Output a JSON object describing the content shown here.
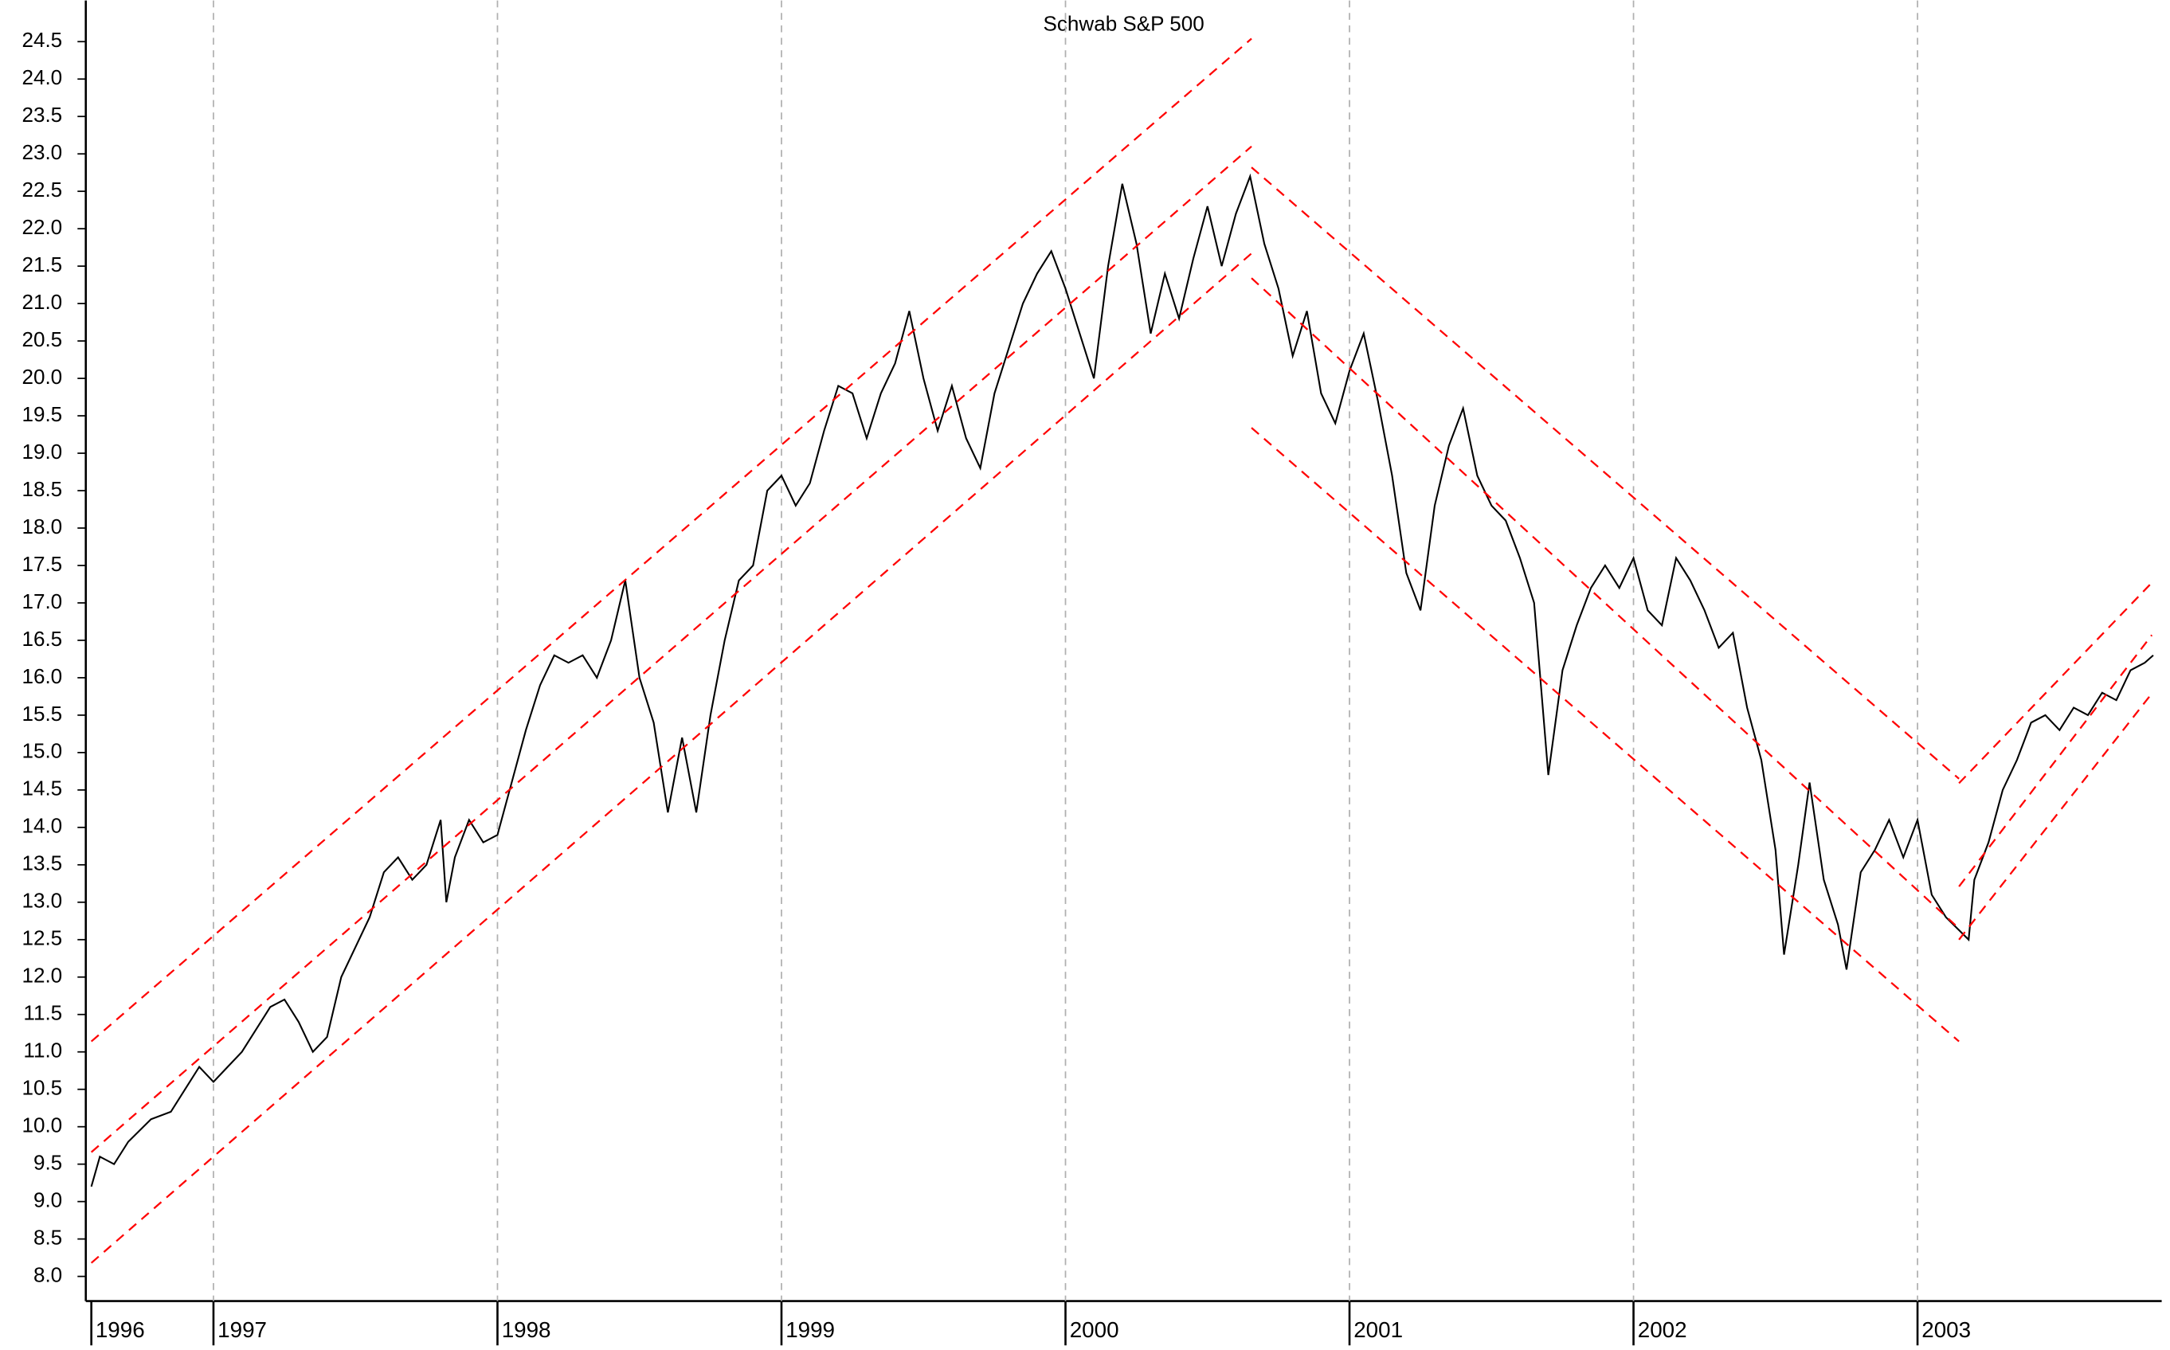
{
  "chart_data": {
    "type": "line",
    "title": "Schwab S&P 500",
    "grid": true,
    "xlim": [
      1996.57,
      2003.85
    ],
    "xticks": [
      {
        "value": 1996.57,
        "label": "1996"
      },
      {
        "value": 1997,
        "label": "1997"
      },
      {
        "value": 1998,
        "label": "1998"
      },
      {
        "value": 1999,
        "label": "1999"
      },
      {
        "value": 2000,
        "label": "2000"
      },
      {
        "value": 2001,
        "label": "2001"
      },
      {
        "value": 2002,
        "label": "2002"
      },
      {
        "value": 2003,
        "label": "2003"
      }
    ],
    "ylim": [
      7.67,
      25.05
    ],
    "yticks": [
      {
        "value": 8,
        "label": "8.0"
      },
      8.5,
      {
        "value": 9,
        "label": "9.0"
      },
      9.5,
      {
        "value": 10,
        "label": "10.0"
      },
      10.5,
      {
        "value": 11,
        "label": "11.0"
      },
      11.5,
      {
        "value": 12,
        "label": "12.0"
      },
      12.5,
      {
        "value": 13,
        "label": "13.0"
      },
      13.5,
      {
        "value": 14,
        "label": "14.0"
      },
      14.5,
      {
        "value": 15,
        "label": "15.0"
      },
      15.5,
      {
        "value": 16,
        "label": "16.0"
      },
      16.5,
      {
        "value": 17,
        "label": "17.0"
      },
      17.5,
      {
        "value": 18,
        "label": "18.0"
      },
      18.5,
      {
        "value": 19,
        "label": "19.0"
      },
      19.5,
      {
        "value": 20,
        "label": "20.0"
      },
      20.5,
      {
        "value": 21,
        "label": "21.0"
      },
      21.5,
      {
        "value": 22,
        "label": "22.0"
      },
      22.5,
      {
        "value": 23,
        "label": "23.0"
      },
      23.5,
      {
        "value": 24,
        "label": "24.0"
      },
      24.5
    ],
    "series": [
      {
        "color": "#000000",
        "dash": false,
        "x": [
          1996.57,
          1996.6,
          1996.65,
          1996.7,
          1996.78,
          1996.85,
          1996.9,
          1996.95,
          1997.0,
          1997.05,
          1997.1,
          1997.15,
          1997.2,
          1997.25,
          1997.3,
          1997.35,
          1997.4,
          1997.45,
          1997.5,
          1997.55,
          1997.6,
          1997.65,
          1997.7,
          1997.75,
          1997.8,
          1997.82,
          1997.85,
          1997.9,
          1997.95,
          1998.0,
          1998.05,
          1998.1,
          1998.15,
          1998.2,
          1998.25,
          1998.3,
          1998.35,
          1998.4,
          1998.45,
          1998.5,
          1998.55,
          1998.6,
          1998.65,
          1998.7,
          1998.75,
          1998.8,
          1998.85,
          1998.9,
          1998.95,
          1999.0,
          1999.05,
          1999.1,
          1999.15,
          1999.2,
          1999.25,
          1999.3,
          1999.35,
          1999.4,
          1999.45,
          1999.5,
          1999.55,
          1999.6,
          1999.65,
          1999.7,
          1999.75,
          1999.8,
          1999.85,
          1999.9,
          1999.95,
          2000.0,
          2000.05,
          2000.1,
          2000.15,
          2000.2,
          2000.25,
          2000.3,
          2000.35,
          2000.4,
          2000.45,
          2000.5,
          2000.55,
          2000.6,
          2000.65,
          2000.7,
          2000.75,
          2000.8,
          2000.85,
          2000.9,
          2000.95,
          2001.0,
          2001.05,
          2001.1,
          2001.15,
          2001.2,
          2001.25,
          2001.3,
          2001.35,
          2001.4,
          2001.45,
          2001.5,
          2001.55,
          2001.6,
          2001.65,
          2001.7,
          2001.75,
          2001.8,
          2001.85,
          2001.9,
          2001.95,
          2002.0,
          2002.05,
          2002.1,
          2002.15,
          2002.2,
          2002.25,
          2002.3,
          2002.35,
          2002.4,
          2002.45,
          2002.5,
          2002.53,
          2002.58,
          2002.62,
          2002.67,
          2002.72,
          2002.75,
          2002.8,
          2002.85,
          2002.9,
          2002.95,
          2003.0,
          2003.05,
          2003.1,
          2003.18,
          2003.2,
          2003.25,
          2003.3,
          2003.35,
          2003.4,
          2003.45,
          2003.5,
          2003.55,
          2003.6,
          2003.65,
          2003.7,
          2003.75,
          2003.8,
          2003.83
        ],
        "values": [
          9.2,
          9.6,
          9.5,
          9.8,
          10.1,
          10.2,
          10.5,
          10.8,
          10.6,
          10.8,
          11.0,
          11.3,
          11.6,
          11.7,
          11.4,
          11.0,
          11.2,
          12.0,
          12.4,
          12.8,
          13.4,
          13.6,
          13.3,
          13.5,
          14.1,
          13.0,
          13.6,
          14.1,
          13.8,
          13.9,
          14.6,
          15.3,
          15.9,
          16.3,
          16.2,
          16.3,
          16.0,
          16.5,
          17.3,
          16.0,
          15.4,
          14.2,
          15.2,
          14.2,
          15.5,
          16.5,
          17.3,
          17.5,
          18.5,
          18.7,
          18.3,
          18.6,
          19.3,
          19.9,
          19.8,
          19.2,
          19.8,
          20.2,
          20.9,
          20.0,
          19.3,
          19.9,
          19.2,
          18.8,
          19.8,
          20.4,
          21.0,
          21.4,
          21.7,
          21.2,
          20.6,
          20.0,
          21.5,
          22.6,
          21.8,
          20.6,
          21.4,
          20.8,
          21.6,
          22.3,
          21.5,
          22.2,
          22.7,
          21.8,
          21.2,
          20.3,
          20.9,
          19.8,
          19.4,
          20.1,
          20.6,
          19.7,
          18.7,
          17.4,
          16.9,
          18.3,
          19.1,
          19.6,
          18.7,
          18.3,
          18.1,
          17.6,
          17.0,
          14.7,
          16.1,
          16.7,
          17.2,
          17.5,
          17.2,
          17.6,
          16.9,
          16.7,
          17.6,
          17.3,
          16.9,
          16.4,
          16.6,
          15.6,
          14.9,
          13.7,
          12.3,
          13.5,
          14.6,
          13.3,
          12.7,
          12.1,
          13.4,
          13.7,
          14.1,
          13.6,
          14.1,
          13.1,
          12.8,
          12.5,
          13.3,
          13.8,
          14.5,
          14.9,
          15.4,
          15.5,
          15.3,
          15.6,
          15.5,
          15.8,
          15.7,
          16.1,
          16.2,
          16.3
        ]
      },
      {
        "color": "#ff0000",
        "dash": true,
        "x": [
          1996.57,
          2000.655
        ],
        "values": [
          11.14,
          24.54
        ]
      },
      {
        "color": "#ff0000",
        "dash": true,
        "x": [
          1996.57,
          2000.655
        ],
        "values": [
          9.66,
          23.1
        ]
      },
      {
        "color": "#ff0000",
        "dash": true,
        "x": [
          1996.57,
          2000.655
        ],
        "values": [
          8.18,
          21.67
        ]
      },
      {
        "color": "#ff0000",
        "dash": true,
        "x": [
          2000.655,
          2003.146
        ],
        "values": [
          22.82,
          14.65
        ]
      },
      {
        "color": "#ff0000",
        "dash": true,
        "x": [
          2000.655,
          2003.146
        ],
        "values": [
          21.34,
          12.65
        ]
      },
      {
        "color": "#ff0000",
        "dash": true,
        "x": [
          2000.655,
          2003.146
        ],
        "values": [
          19.34,
          11.14
        ]
      },
      {
        "color": "#ff0000",
        "dash": true,
        "x": [
          2003.146,
          2003.825
        ],
        "values": [
          14.59,
          17.27
        ]
      },
      {
        "color": "#ff0000",
        "dash": true,
        "x": [
          2003.146,
          2003.825
        ],
        "values": [
          13.21,
          16.57
        ]
      },
      {
        "color": "#ff0000",
        "dash": true,
        "x": [
          2003.146,
          2003.825
        ],
        "values": [
          12.5,
          15.79
        ]
      }
    ]
  }
}
